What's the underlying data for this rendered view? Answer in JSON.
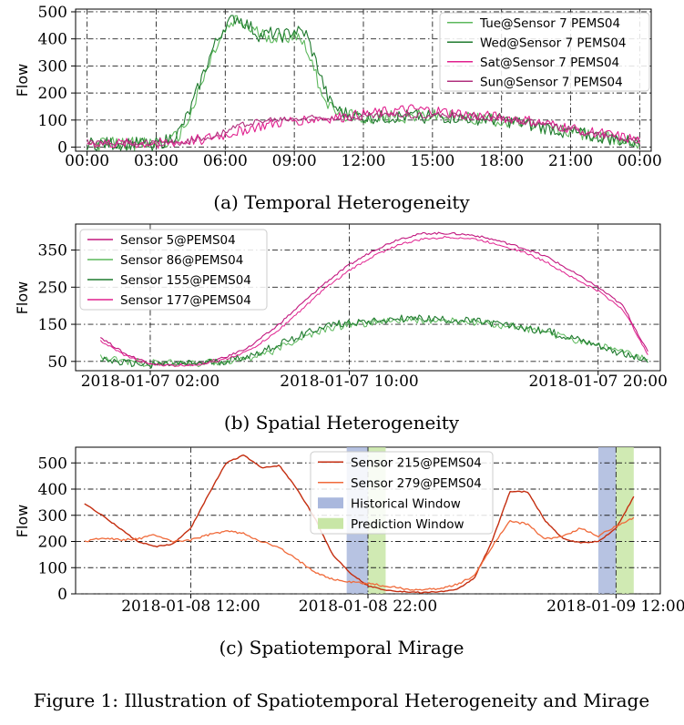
{
  "figure_caption": "Figure 1: Illustration of Spatiotemporal Heterogeneity and Mirage",
  "chart_data": [
    {
      "id": "a",
      "type": "line",
      "caption": "(a) Temporal Heterogeneity",
      "ylabel": "Flow",
      "xlabel": "",
      "grid": true,
      "legend_position": "top-right",
      "x_range": [
        -0.5,
        24.5
      ],
      "ylim": [
        -15,
        510
      ],
      "x_ticks": [
        {
          "v": 0,
          "label": "00:00"
        },
        {
          "v": 3,
          "label": "03:00"
        },
        {
          "v": 6,
          "label": "06:00"
        },
        {
          "v": 9,
          "label": "09:00"
        },
        {
          "v": 12,
          "label": "12:00"
        },
        {
          "v": 15,
          "label": "15:00"
        },
        {
          "v": 18,
          "label": "18:00"
        },
        {
          "v": 21,
          "label": "21:00"
        },
        {
          "v": 24,
          "label": "00:00"
        }
      ],
      "y_ticks": [
        {
          "v": 0,
          "label": "0"
        },
        {
          "v": 100,
          "label": "100"
        },
        {
          "v": 200,
          "label": "200"
        },
        {
          "v": 300,
          "label": "300"
        },
        {
          "v": 400,
          "label": "400"
        },
        {
          "v": 500,
          "label": "500"
        }
      ],
      "series": [
        {
          "name": "Tue@Sensor 7 PEMS04",
          "color": "#5cb85c",
          "width": 1.1,
          "noise": 25,
          "x": [
            0,
            1,
            2,
            3,
            3.5,
            4,
            4.5,
            5,
            5.5,
            6,
            6.5,
            7,
            7.5,
            8,
            8.5,
            9,
            9.5,
            10,
            10.5,
            11,
            12,
            13,
            14,
            15,
            16,
            17,
            18,
            19,
            20,
            21,
            22,
            23,
            24
          ],
          "y": [
            12,
            12,
            12,
            12,
            20,
            45,
            120,
            240,
            350,
            430,
            470,
            440,
            420,
            410,
            400,
            420,
            380,
            250,
            150,
            120,
            110,
            110,
            115,
            115,
            110,
            105,
            100,
            85,
            70,
            55,
            40,
            25,
            15
          ]
        },
        {
          "name": "Wed@Sensor 7 PEMS04",
          "color": "#1f7a2e",
          "width": 1.1,
          "noise": 25,
          "x": [
            0,
            1,
            2,
            3,
            3.5,
            4,
            4.5,
            5,
            5.5,
            6,
            6.5,
            7,
            7.5,
            8,
            8.5,
            9,
            9.5,
            10,
            10.5,
            11,
            12,
            13,
            14,
            15,
            16,
            17,
            18,
            19,
            20,
            21,
            22,
            23,
            24
          ],
          "y": [
            12,
            12,
            12,
            12,
            25,
            55,
            140,
            260,
            370,
            450,
            480,
            450,
            410,
            420,
            410,
            430,
            420,
            300,
            170,
            130,
            110,
            110,
            115,
            112,
            110,
            105,
            100,
            85,
            70,
            55,
            40,
            28,
            15
          ]
        },
        {
          "name": "Sat@Sensor 7 PEMS04",
          "color": "#e0208e",
          "width": 1.1,
          "noise": 20,
          "x": [
            0,
            2,
            4,
            5,
            6,
            7,
            8,
            9,
            10,
            11,
            12,
            13,
            14,
            15,
            16,
            17,
            18,
            19,
            20,
            21,
            22,
            23,
            24
          ],
          "y": [
            15,
            12,
            18,
            30,
            45,
            70,
            85,
            100,
            105,
            110,
            120,
            130,
            140,
            135,
            125,
            115,
            110,
            100,
            85,
            70,
            55,
            40,
            25
          ]
        },
        {
          "name": "Sun@Sensor 7 PEMS04",
          "color": "#b0307e",
          "width": 1.1,
          "noise": 12,
          "x": [
            0,
            2,
            4,
            5,
            6,
            7,
            8,
            9,
            10,
            11,
            12,
            13,
            14,
            15,
            16,
            17,
            18,
            19,
            20,
            21,
            22,
            23,
            24
          ],
          "y": [
            18,
            15,
            18,
            30,
            60,
            90,
            100,
            105,
            110,
            112,
            115,
            118,
            118,
            118,
            115,
            110,
            105,
            95,
            80,
            65,
            50,
            35,
            25
          ]
        }
      ]
    },
    {
      "id": "b",
      "type": "line",
      "caption": "(b) Spatial Heterogeneity",
      "ylabel": "Flow",
      "xlabel": "",
      "grid": true,
      "legend_position": "top-left",
      "x_range": [
        -1,
        22.5
      ],
      "ylim": [
        25,
        420
      ],
      "x_ticks": [
        {
          "v": 2,
          "label": "2018-01-07 02:00"
        },
        {
          "v": 10,
          "label": "2018-01-07 10:00"
        },
        {
          "v": 20,
          "label": "2018-01-07 20:00"
        }
      ],
      "y_ticks": [
        {
          "v": 50,
          "label": "50"
        },
        {
          "v": 150,
          "label": "150"
        },
        {
          "v": 250,
          "label": "250"
        },
        {
          "v": 350,
          "label": "350"
        }
      ],
      "series": [
        {
          "name": "Sensor 5@PEMS04",
          "color": "#c2187f",
          "width": 1.1,
          "noise": 3,
          "x": [
            0,
            1,
            2,
            3,
            4,
            5,
            6,
            7,
            8,
            9,
            10,
            11,
            12,
            13,
            14,
            15,
            16,
            17,
            18,
            19,
            20,
            21,
            22
          ],
          "y": [
            115,
            70,
            45,
            40,
            45,
            60,
            90,
            140,
            200,
            260,
            310,
            350,
            380,
            395,
            395,
            390,
            375,
            355,
            330,
            290,
            250,
            200,
            75
          ]
        },
        {
          "name": "Sensor 86@PEMS04",
          "color": "#5cb85c",
          "width": 1.0,
          "noise": 10,
          "x": [
            0,
            1,
            2,
            3,
            4,
            5,
            6,
            7,
            8,
            9,
            10,
            11,
            12,
            13,
            14,
            15,
            16,
            17,
            18,
            19,
            20,
            21,
            22
          ],
          "y": [
            60,
            50,
            45,
            45,
            45,
            50,
            60,
            80,
            110,
            135,
            150,
            155,
            160,
            160,
            158,
            155,
            148,
            140,
            125,
            110,
            95,
            75,
            55
          ]
        },
        {
          "name": "Sensor 155@PEMS04",
          "color": "#1f7a2e",
          "width": 1.1,
          "noise": 10,
          "x": [
            0,
            1,
            2,
            3,
            4,
            5,
            6,
            7,
            8,
            9,
            10,
            11,
            12,
            13,
            14,
            15,
            16,
            17,
            18,
            19,
            20,
            21,
            22
          ],
          "y": [
            55,
            45,
            42,
            42,
            45,
            50,
            65,
            90,
            120,
            145,
            155,
            160,
            165,
            165,
            162,
            158,
            150,
            140,
            130,
            115,
            95,
            70,
            50
          ]
        },
        {
          "name": "Sensor 177@PEMS04",
          "color": "#e0208e",
          "width": 1.0,
          "noise": 3,
          "x": [
            0,
            1,
            2,
            3,
            4,
            5,
            6,
            7,
            8,
            9,
            10,
            11,
            12,
            13,
            14,
            15,
            16,
            17,
            18,
            19,
            20,
            21,
            22
          ],
          "y": [
            105,
            65,
            42,
            38,
            42,
            55,
            80,
            125,
            185,
            245,
            295,
            335,
            365,
            380,
            385,
            380,
            365,
            345,
            315,
            275,
            240,
            190,
            70
          ]
        }
      ]
    },
    {
      "id": "c",
      "type": "line",
      "caption": "(c) Spatiotemporal Mirage",
      "ylabel": "Flow",
      "xlabel": "",
      "grid": true,
      "legend_position": "top-center",
      "x_range": [
        5.5,
        38.5
      ],
      "ylim": [
        0,
        560
      ],
      "x_ticks": [
        {
          "v": 12,
          "label": "2018-01-08 12:00"
        },
        {
          "v": 22,
          "label": "2018-01-08 22:00"
        },
        {
          "v": 36,
          "label": "2018-01-09 12:00"
        }
      ],
      "y_ticks": [
        {
          "v": 0,
          "label": "0"
        },
        {
          "v": 100,
          "label": "100"
        },
        {
          "v": 200,
          "label": "200"
        },
        {
          "v": 300,
          "label": "300"
        },
        {
          "v": 400,
          "label": "400"
        },
        {
          "v": 500,
          "label": "500"
        }
      ],
      "windows": [
        {
          "name": "Historical Window",
          "color": "#aab8dd",
          "x0": 20.8,
          "x1": 22,
          "legend": true
        },
        {
          "name": "Prediction Window",
          "color": "#c8e6a6",
          "x0": 22,
          "x1": 23,
          "legend": true
        },
        {
          "name": "Historical Window",
          "color": "#aab8dd",
          "x0": 35,
          "x1": 36,
          "legend": false
        },
        {
          "name": "Prediction Window",
          "color": "#c8e6a6",
          "x0": 36,
          "x1": 37,
          "legend": false
        }
      ],
      "series": [
        {
          "name": "Sensor 215@PEMS04",
          "color": "#c42e10",
          "width": 1.4,
          "noise": 2,
          "x": [
            6,
            7,
            8,
            9,
            10,
            11,
            12,
            13,
            14,
            15,
            16,
            17,
            18,
            19,
            20,
            21,
            22,
            23,
            24,
            25,
            26,
            27,
            28,
            29,
            30,
            31,
            32,
            33,
            34,
            35,
            36,
            37
          ],
          "y": [
            345,
            300,
            250,
            200,
            180,
            190,
            250,
            380,
            500,
            530,
            480,
            490,
            400,
            290,
            150,
            80,
            30,
            15,
            8,
            5,
            8,
            15,
            60,
            200,
            390,
            390,
            280,
            210,
            195,
            200,
            250,
            370
          ]
        },
        {
          "name": "Sensor 279@PEMS04",
          "color": "#f06a3a",
          "width": 1.3,
          "noise": 4,
          "x": [
            6,
            7,
            8,
            9,
            10,
            11,
            12,
            13,
            14,
            15,
            16,
            17,
            18,
            19,
            20,
            21,
            22,
            23,
            24,
            25,
            26,
            27,
            28,
            29,
            30,
            31,
            32,
            33,
            34,
            35,
            36,
            37
          ],
          "y": [
            200,
            215,
            205,
            210,
            225,
            200,
            205,
            225,
            240,
            230,
            200,
            175,
            130,
            85,
            55,
            45,
            40,
            30,
            20,
            15,
            20,
            35,
            70,
            180,
            280,
            265,
            210,
            220,
            250,
            220,
            260,
            290
          ]
        }
      ]
    }
  ]
}
